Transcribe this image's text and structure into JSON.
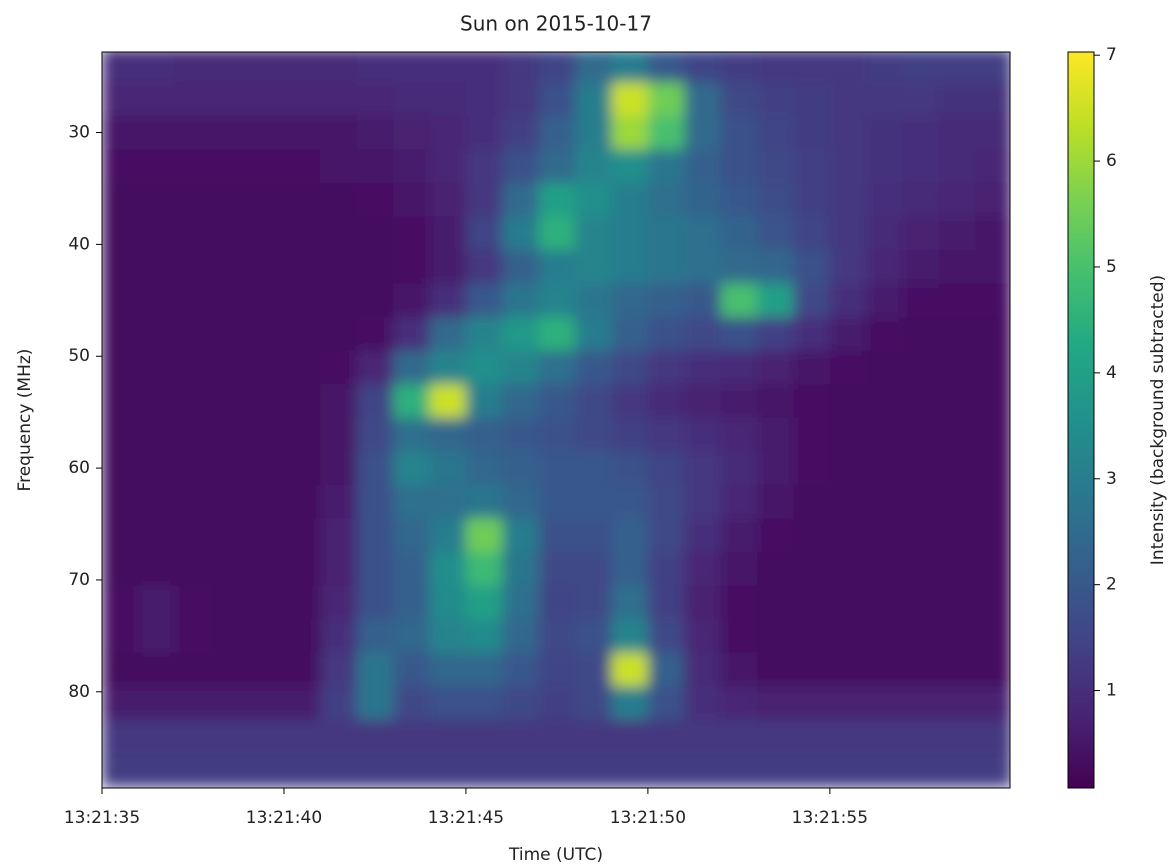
{
  "chart_data": {
    "type": "heatmap",
    "title": "Sun on 2015-10-17",
    "xlabel": "Time (UTC)",
    "ylabel": "Frequency (MHz)",
    "colorbar_label": "Intensity (background subtracted)",
    "colormap": "viridis",
    "xlim": [
      35,
      59.95
    ],
    "xticks": [
      {
        "value": 35,
        "label": "13:21:35"
      },
      {
        "value": 40,
        "label": "13:21:40"
      },
      {
        "value": 45,
        "label": "13:21:45"
      },
      {
        "value": 50,
        "label": "13:21:50"
      },
      {
        "value": 55,
        "label": "13:21:55"
      }
    ],
    "ylim": [
      88.6,
      22.8
    ],
    "yticks": [
      30,
      40,
      50,
      60,
      70,
      80
    ],
    "clim": [
      0.08,
      7.03
    ],
    "cticks": [
      1,
      2,
      3,
      4,
      5,
      6,
      7
    ],
    "x": [
      35.5,
      36.5,
      37.5,
      38.5,
      39.5,
      40.5,
      41.5,
      42.5,
      43.5,
      44.5,
      45.5,
      46.5,
      47.5,
      48.5,
      49.5,
      50.5,
      51.5,
      52.5,
      53.5,
      54.5,
      55.5,
      56.5,
      57.5,
      58.5,
      59.5
    ],
    "y": [
      24,
      27,
      30,
      33,
      36,
      39,
      42,
      45,
      48,
      51,
      54,
      57,
      60,
      63,
      66,
      69,
      72,
      75,
      78,
      81,
      84,
      87
    ],
    "z": [
      [
        1.0,
        1.0,
        0.9,
        0.9,
        0.9,
        0.9,
        0.9,
        1.0,
        1.0,
        1.0,
        1.0,
        1.2,
        1.5,
        2.5,
        3.0,
        2.0,
        1.5,
        1.3,
        1.2,
        1.2,
        1.2,
        1.3,
        1.4,
        1.4,
        1.4
      ],
      [
        0.8,
        0.8,
        0.8,
        0.8,
        0.8,
        0.8,
        0.8,
        0.8,
        0.9,
        0.9,
        1.0,
        1.2,
        1.8,
        3.0,
        6.5,
        5.5,
        2.5,
        1.6,
        1.4,
        1.3,
        1.2,
        1.2,
        1.2,
        1.1,
        1.1
      ],
      [
        0.5,
        0.5,
        0.5,
        0.5,
        0.5,
        0.5,
        0.5,
        0.6,
        0.7,
        0.8,
        1.0,
        1.4,
        2.2,
        3.0,
        6.0,
        5.0,
        2.5,
        1.8,
        1.5,
        1.3,
        1.2,
        1.1,
        1.0,
        0.9,
        0.9
      ],
      [
        0.4,
        0.4,
        0.4,
        0.4,
        0.4,
        0.4,
        0.5,
        0.5,
        0.6,
        0.8,
        1.2,
        1.8,
        2.5,
        3.2,
        3.5,
        2.8,
        2.2,
        1.8,
        1.6,
        1.4,
        1.2,
        1.1,
        1.0,
        0.9,
        0.8
      ],
      [
        0.3,
        0.3,
        0.3,
        0.3,
        0.3,
        0.3,
        0.3,
        0.4,
        0.5,
        0.7,
        1.2,
        2.5,
        4.0,
        3.5,
        3.0,
        2.6,
        2.3,
        2.0,
        1.7,
        1.4,
        1.2,
        1.0,
        0.9,
        0.8,
        0.7
      ],
      [
        0.3,
        0.3,
        0.3,
        0.3,
        0.3,
        0.3,
        0.3,
        0.3,
        0.4,
        0.6,
        1.5,
        3.0,
        4.5,
        3.2,
        3.0,
        2.8,
        2.6,
        2.3,
        1.9,
        1.5,
        1.2,
        0.9,
        0.7,
        0.6,
        0.5
      ],
      [
        0.3,
        0.3,
        0.3,
        0.3,
        0.3,
        0.3,
        0.3,
        0.3,
        0.4,
        0.6,
        1.2,
        2.2,
        3.0,
        3.2,
        3.0,
        2.8,
        2.6,
        2.5,
        2.4,
        1.8,
        1.2,
        0.8,
        0.6,
        0.5,
        0.5
      ],
      [
        0.3,
        0.3,
        0.3,
        0.3,
        0.3,
        0.3,
        0.3,
        0.3,
        0.5,
        1.0,
        2.0,
        2.8,
        3.2,
        2.8,
        2.4,
        2.2,
        2.0,
        5.0,
        4.0,
        1.6,
        1.0,
        0.6,
        0.4,
        0.4,
        0.4
      ],
      [
        0.3,
        0.3,
        0.3,
        0.3,
        0.3,
        0.3,
        0.3,
        0.4,
        1.0,
        2.5,
        3.2,
        3.8,
        4.5,
        3.0,
        2.2,
        1.8,
        1.6,
        1.8,
        1.4,
        1.0,
        0.6,
        0.4,
        0.3,
        0.3,
        0.3
      ],
      [
        0.3,
        0.3,
        0.3,
        0.3,
        0.3,
        0.3,
        0.4,
        0.8,
        2.5,
        3.2,
        3.5,
        3.2,
        2.6,
        2.0,
        1.6,
        1.2,
        1.0,
        0.9,
        0.7,
        0.5,
        0.4,
        0.3,
        0.3,
        0.3,
        0.3
      ],
      [
        0.3,
        0.3,
        0.3,
        0.3,
        0.3,
        0.3,
        0.5,
        1.5,
        4.5,
        6.5,
        3.0,
        2.4,
        2.0,
        1.6,
        1.2,
        0.9,
        0.7,
        0.6,
        0.5,
        0.4,
        0.3,
        0.3,
        0.3,
        0.3,
        0.3
      ],
      [
        0.3,
        0.3,
        0.3,
        0.3,
        0.3,
        0.3,
        0.5,
        1.6,
        2.6,
        2.4,
        2.2,
        2.0,
        1.8,
        1.6,
        1.4,
        1.2,
        1.0,
        0.8,
        0.6,
        0.4,
        0.3,
        0.3,
        0.3,
        0.3,
        0.3
      ],
      [
        0.3,
        0.3,
        0.3,
        0.3,
        0.3,
        0.3,
        0.5,
        1.8,
        3.2,
        2.8,
        2.4,
        2.2,
        2.0,
        2.0,
        1.8,
        1.5,
        1.2,
        0.9,
        0.6,
        0.4,
        0.3,
        0.3,
        0.3,
        0.3,
        0.3
      ],
      [
        0.3,
        0.3,
        0.3,
        0.3,
        0.3,
        0.3,
        0.6,
        1.8,
        2.6,
        2.6,
        2.8,
        2.4,
        2.0,
        2.0,
        2.0,
        1.6,
        1.2,
        0.8,
        0.5,
        0.3,
        0.3,
        0.3,
        0.3,
        0.3,
        0.3
      ],
      [
        0.3,
        0.3,
        0.3,
        0.3,
        0.3,
        0.3,
        0.7,
        1.8,
        2.4,
        3.0,
        5.5,
        3.0,
        1.8,
        1.8,
        2.2,
        1.6,
        1.0,
        0.6,
        0.4,
        0.3,
        0.3,
        0.3,
        0.3,
        0.3,
        0.3
      ],
      [
        0.3,
        0.3,
        0.3,
        0.3,
        0.3,
        0.3,
        0.7,
        1.8,
        2.2,
        3.5,
        4.8,
        2.8,
        1.6,
        1.6,
        2.2,
        1.4,
        0.8,
        0.5,
        0.3,
        0.3,
        0.3,
        0.3,
        0.3,
        0.3,
        0.3
      ],
      [
        0.4,
        0.6,
        0.4,
        0.3,
        0.3,
        0.3,
        0.8,
        1.8,
        2.2,
        3.4,
        4.0,
        2.6,
        1.5,
        1.6,
        2.6,
        1.4,
        0.7,
        0.4,
        0.3,
        0.3,
        0.3,
        0.3,
        0.3,
        0.3,
        0.3
      ],
      [
        0.4,
        0.6,
        0.4,
        0.3,
        0.3,
        0.3,
        1.0,
        2.2,
        2.4,
        3.2,
        3.4,
        2.4,
        1.6,
        1.8,
        3.2,
        1.6,
        0.8,
        0.4,
        0.3,
        0.3,
        0.3,
        0.3,
        0.3,
        0.3,
        0.3
      ],
      [
        0.3,
        0.3,
        0.3,
        0.3,
        0.3,
        0.3,
        1.2,
        2.8,
        2.0,
        2.4,
        2.4,
        2.0,
        1.5,
        1.6,
        6.5,
        2.2,
        0.9,
        0.5,
        0.3,
        0.3,
        0.3,
        0.3,
        0.3,
        0.3,
        0.3
      ],
      [
        0.6,
        0.6,
        0.6,
        0.6,
        0.6,
        0.6,
        1.4,
        2.8,
        1.6,
        1.8,
        1.8,
        1.6,
        1.4,
        1.6,
        3.0,
        1.8,
        1.0,
        0.8,
        0.7,
        0.7,
        0.7,
        0.7,
        0.7,
        0.7,
        0.7
      ],
      [
        1.2,
        1.2,
        1.2,
        1.2,
        1.2,
        1.2,
        1.2,
        1.2,
        1.2,
        1.2,
        1.2,
        1.2,
        1.2,
        1.2,
        1.2,
        1.2,
        1.2,
        1.2,
        1.2,
        1.2,
        1.2,
        1.2,
        1.2,
        1.2,
        1.2
      ],
      [
        1.3,
        1.3,
        1.3,
        1.3,
        1.3,
        1.3,
        1.3,
        1.3,
        1.3,
        1.3,
        1.3,
        1.3,
        1.3,
        1.3,
        1.3,
        1.3,
        1.3,
        1.3,
        1.3,
        1.3,
        1.3,
        1.3,
        1.3,
        1.3,
        1.3
      ]
    ]
  }
}
